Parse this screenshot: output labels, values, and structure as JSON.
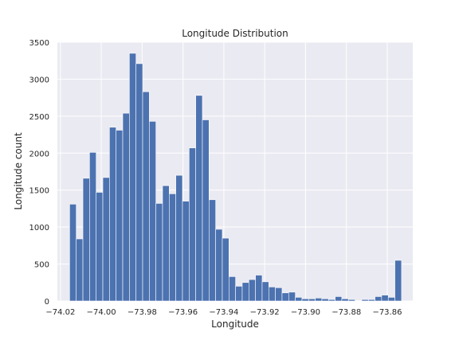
{
  "chart_data": {
    "type": "bar",
    "title": "Longitude Distribution",
    "xlabel": "Longitude",
    "ylabel": "Longitude count",
    "xlim": [
      -74.0215,
      -73.8475
    ],
    "ylim": [
      0,
      3500
    ],
    "xticks": [
      -74.02,
      -74.0,
      -73.98,
      -73.96,
      -73.94,
      -73.92,
      -73.9,
      -73.88,
      -73.86
    ],
    "xtick_labels": [
      "−74.02",
      "−74.00",
      "−73.98",
      "−73.96",
      "−73.94",
      "−73.92",
      "−73.90",
      "−73.88",
      "−73.86"
    ],
    "yticks": [
      0,
      500,
      1000,
      1500,
      2000,
      2500,
      3000,
      3500
    ],
    "ytick_labels": [
      "0",
      "500",
      "1000",
      "1500",
      "2000",
      "2500",
      "3000",
      "3500"
    ],
    "grid": true,
    "bin_start": -74.0155,
    "bin_width": 0.00325,
    "values": [
      1310,
      840,
      1660,
      2010,
      1470,
      1670,
      2350,
      2310,
      2540,
      3350,
      3210,
      2830,
      2430,
      1320,
      1560,
      1450,
      1700,
      1350,
      2070,
      2780,
      2450,
      1370,
      970,
      850,
      330,
      200,
      250,
      290,
      350,
      260,
      190,
      180,
      110,
      120,
      50,
      30,
      30,
      40,
      30,
      20,
      60,
      30,
      20,
      5,
      20,
      20,
      60,
      80,
      50,
      550
    ],
    "colors": {
      "bar": "#4c72b0",
      "plot_background": "#eaeaf2",
      "grid": "#ffffff"
    }
  }
}
